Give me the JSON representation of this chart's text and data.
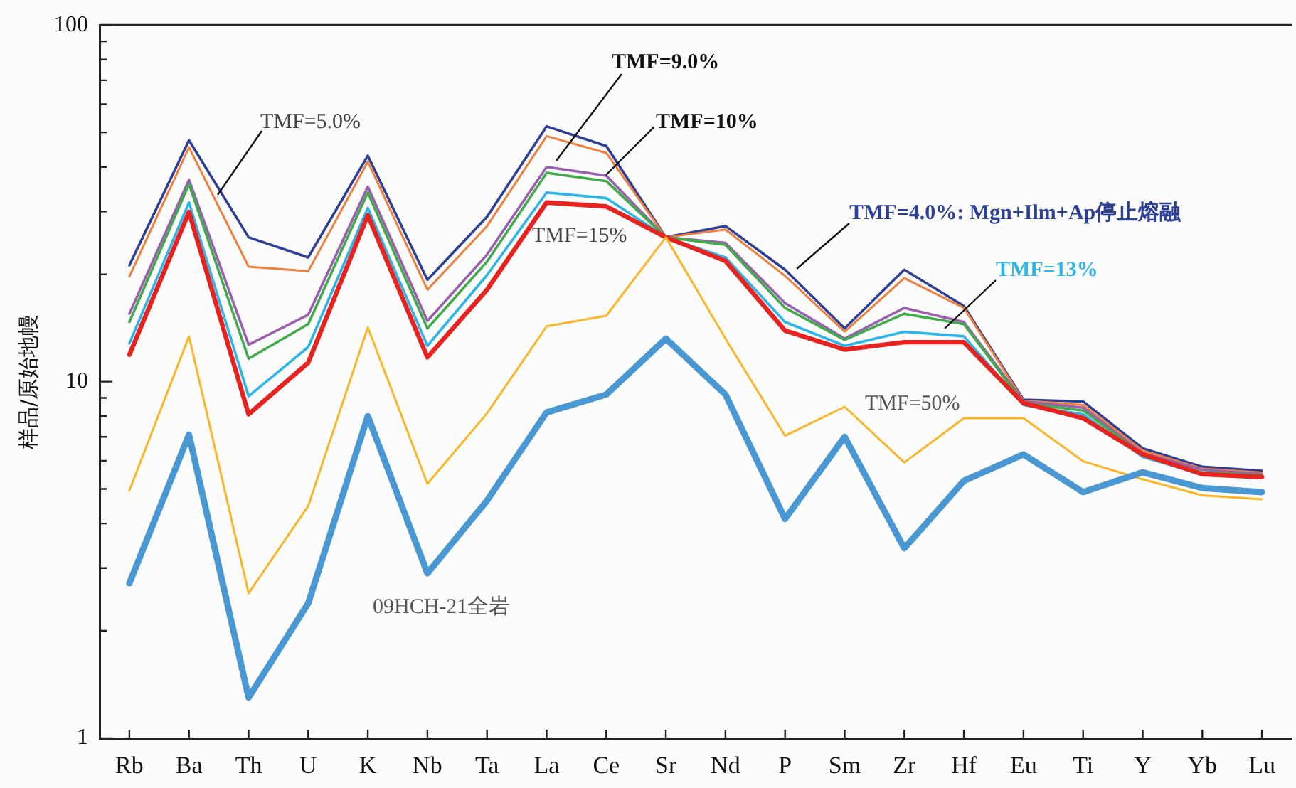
{
  "chart_data": {
    "type": "line",
    "ylabel": "样品/原始地幔",
    "categories": [
      "Rb",
      "Ba",
      "Th",
      "U",
      "K",
      "Nb",
      "Ta",
      "La",
      "Ce",
      "Sr",
      "Nd",
      "P",
      "Sm",
      "Zr",
      "Hf",
      "Eu",
      "Ti",
      "Y",
      "Yb",
      "Lu"
    ],
    "log": "y",
    "ylim": [
      1,
      100
    ],
    "yticks": [
      1,
      {
        "value": 2,
        "label": null
      },
      {
        "value": 3,
        "label": null
      },
      {
        "value": 4,
        "label": null
      },
      {
        "value": 5,
        "label": null
      },
      {
        "value": 6,
        "label": null
      },
      {
        "value": 7,
        "label": null
      },
      {
        "value": 8,
        "label": null
      },
      {
        "value": 9,
        "label": null
      },
      10,
      {
        "value": 20,
        "label": null
      },
      {
        "value": 30,
        "label": null
      },
      {
        "value": 40,
        "label": null
      },
      {
        "value": 50,
        "label": null
      },
      {
        "value": 60,
        "label": null
      },
      {
        "value": 70,
        "label": null
      },
      {
        "value": 80,
        "label": null
      },
      {
        "value": 90,
        "label": null
      },
      100
    ],
    "grid": false,
    "legend": false,
    "marker": "none",
    "line_style": "solid",
    "series": [
      {
        "name": "TMF=4.0%: Mgn+Ilm+Ap停止熔融",
        "color": "#2e3f96",
        "values": [
          21.2,
          47.5,
          25.4,
          22.3,
          43,
          19.3,
          29,
          52,
          45.8,
          25.4,
          27.3,
          20.6,
          14.1,
          20.6,
          16.3,
          8.9,
          8.8,
          6.5,
          5.77,
          5.62
        ]
      },
      {
        "name": "TMF=5.0%",
        "color": "#f07f3c",
        "values": [
          19.7,
          45.4,
          21,
          20.4,
          41.4,
          18.1,
          27.3,
          48.8,
          43.8,
          25.4,
          26.7,
          19.8,
          13.8,
          19.5,
          16.1,
          8.85,
          8.6,
          6.4,
          5.7,
          5.56
        ]
      },
      {
        "name": "TMF=9.0%",
        "color": "#9a5fb0",
        "values": [
          15.5,
          36.8,
          12.7,
          15.4,
          35.2,
          14.8,
          22.7,
          40,
          37.8,
          25.4,
          24.5,
          16.6,
          13.2,
          16.1,
          14.7,
          8.8,
          8.45,
          6.3,
          5.66,
          5.5
        ]
      },
      {
        "name": "TMF=10%",
        "color": "#3fab4a",
        "values": [
          14.7,
          35.8,
          11.6,
          14.5,
          33.9,
          14.1,
          21.7,
          38.5,
          36.5,
          25.4,
          24.2,
          16.1,
          13.1,
          15.5,
          14.5,
          8.7,
          8.3,
          6.25,
          5.56,
          5.46
        ]
      },
      {
        "name": "TMF=13%",
        "color": "#2cb5e8",
        "values": [
          12.8,
          31.8,
          9.1,
          12.5,
          30.7,
          12.6,
          19.9,
          33.9,
          32.7,
          25.4,
          22.3,
          14.7,
          12.6,
          13.8,
          13.4,
          8.6,
          8.1,
          6.15,
          5.5,
          5.4
        ]
      },
      {
        "name": "TMF=15%",
        "color": "#e8231f",
        "values": [
          11.9,
          29.9,
          8.1,
          11.3,
          29.3,
          11.7,
          18.1,
          31.8,
          31,
          25.4,
          21.8,
          13.9,
          12.3,
          12.9,
          12.9,
          8.7,
          7.9,
          6.25,
          5.5,
          5.4
        ]
      },
      {
        "name": "TMF=50%",
        "color": "#fbb526",
        "values": [
          4.95,
          13.4,
          2.55,
          4.48,
          14.2,
          5.17,
          8.15,
          14.3,
          15.3,
          25.4,
          13.2,
          7.05,
          8.5,
          5.93,
          7.9,
          7.9,
          5.98,
          5.32,
          4.8,
          4.68
        ]
      },
      {
        "name": "09HCH-21全岩",
        "color": "#4a98d3",
        "values": [
          2.72,
          7.1,
          1.3,
          2.39,
          8,
          2.9,
          4.64,
          8.2,
          9.2,
          13.2,
          9.2,
          4.12,
          7,
          3.41,
          5.27,
          6.25,
          4.9,
          5.57,
          5.03,
          4.9
        ]
      }
    ]
  }
}
